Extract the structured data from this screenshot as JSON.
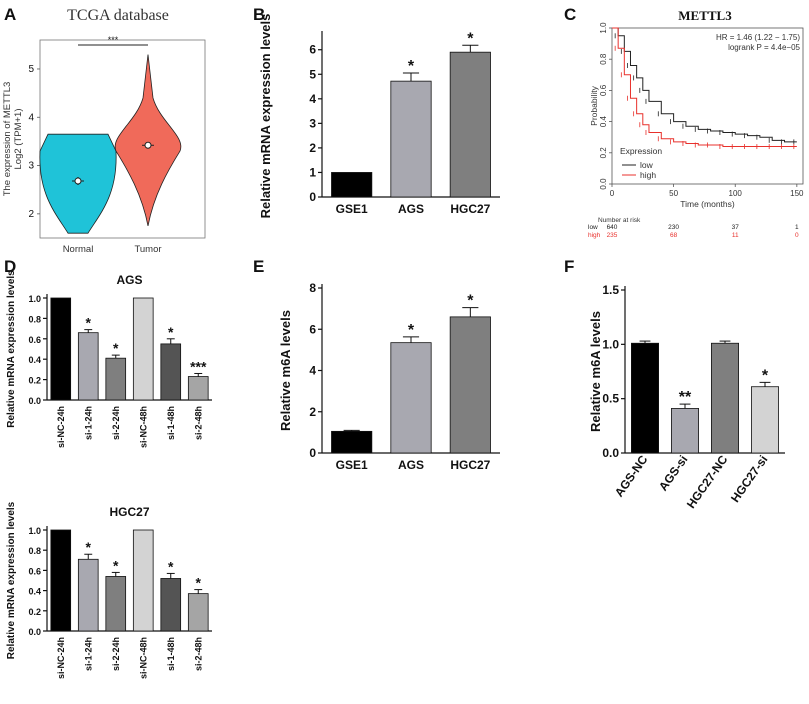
{
  "panels": {
    "A": "A",
    "B": "B",
    "C": "C",
    "D": "D",
    "E": "E",
    "F": "F"
  },
  "chart_data": [
    {
      "id": "A",
      "type": "violin",
      "title": "TCGA database",
      "ylabel_line1": "The expression of METTL3",
      "ylabel_line2": "Log2 (TPM+1)",
      "categories": [
        "Normal",
        "Tumor"
      ],
      "medians": [
        2.68,
        3.42
      ],
      "ranges": [
        [
          1.6,
          3.65
        ],
        [
          1.75,
          5.3
        ]
      ],
      "colors": [
        "#1fc3d8",
        "#f06a5a"
      ],
      "significance": "***",
      "yticks": [
        2,
        3,
        4,
        5
      ],
      "ylim": [
        1.5,
        5.6
      ]
    },
    {
      "id": "B",
      "type": "bar",
      "ylabel": "Relative mRNA expression levels",
      "categories": [
        "GSE1",
        "AGS",
        "HGC27"
      ],
      "values": [
        1.0,
        4.72,
        5.9
      ],
      "errors": [
        0,
        0.33,
        0.28
      ],
      "sig": [
        "",
        "*",
        "*"
      ],
      "colors": [
        "#000000",
        "#a8a8b0",
        "#7f7f7f"
      ],
      "yticks": [
        0,
        1,
        2,
        3,
        4,
        5,
        6
      ],
      "ylim": [
        0,
        6.6
      ]
    },
    {
      "id": "C",
      "type": "line",
      "title": "METTL3",
      "xlabel": "Time (months)",
      "ylabel": "Probability",
      "hr_text": "HR = 1.46 (1.22 − 1.75)",
      "logrank_text": "logrank P = 4.4e−05",
      "legend_title": "Expression",
      "series": [
        {
          "name": "low",
          "color": "#222222",
          "x": [
            0,
            5,
            10,
            15,
            20,
            25,
            30,
            40,
            50,
            60,
            70,
            80,
            90,
            100,
            110,
            120,
            130,
            140,
            150
          ],
          "y": [
            1.0,
            0.95,
            0.85,
            0.76,
            0.68,
            0.6,
            0.53,
            0.45,
            0.4,
            0.37,
            0.35,
            0.34,
            0.33,
            0.32,
            0.31,
            0.3,
            0.28,
            0.27,
            0.27
          ]
        },
        {
          "name": "high",
          "color": "#e8312c",
          "x": [
            0,
            5,
            10,
            15,
            20,
            25,
            30,
            40,
            50,
            60,
            70,
            80,
            90,
            100,
            110,
            120,
            130,
            140,
            150
          ],
          "y": [
            1.0,
            0.87,
            0.7,
            0.55,
            0.45,
            0.38,
            0.33,
            0.29,
            0.27,
            0.26,
            0.25,
            0.25,
            0.24,
            0.24,
            0.24,
            0.24,
            0.24,
            0.24,
            0.24
          ]
        }
      ],
      "xticks": [
        0,
        50,
        100,
        150
      ],
      "yticks": [
        0.0,
        0.2,
        0.4,
        0.6,
        0.8,
        1.0
      ],
      "xlim": [
        0,
        155
      ],
      "ylim": [
        0,
        1.0
      ],
      "risk_header": "Number at risk",
      "risk_rows": [
        {
          "label": "low",
          "values": [
            "640",
            "230",
            "37",
            "1"
          ],
          "color": "#222222"
        },
        {
          "label": "high",
          "values": [
            "235",
            "68",
            "11",
            "0"
          ],
          "color": "#e8312c"
        }
      ]
    },
    {
      "id": "D1",
      "type": "bar",
      "title": "AGS",
      "ylabel": "Relative mRNA expression levels",
      "categories": [
        "si-NC-24h",
        "si-1-24h",
        "si-2-24h",
        "si-NC-48h",
        "si-1-48h",
        "si-2-48h"
      ],
      "values": [
        1.0,
        0.66,
        0.41,
        1.0,
        0.55,
        0.23
      ],
      "errors": [
        0,
        0.03,
        0.03,
        0,
        0.05,
        0.03
      ],
      "sig": [
        "",
        "*",
        "*",
        "",
        "*",
        "***"
      ],
      "colors": [
        "#000000",
        "#a8a8b0",
        "#7f7f7f",
        "#d3d3d3",
        "#545454",
        "#a5a5a5"
      ],
      "yticks": [
        0.0,
        0.2,
        0.4,
        0.6,
        0.8,
        1.0
      ],
      "ylim": [
        0,
        1.0
      ]
    },
    {
      "id": "D2",
      "type": "bar",
      "title": "HGC27",
      "ylabel": "Relative mRNA expression levels",
      "categories": [
        "si-NC-24h",
        "si-1-24h",
        "si-2-24h",
        "si-NC-48h",
        "si-1-48h",
        "si-2-48h"
      ],
      "values": [
        1.0,
        0.71,
        0.54,
        1.0,
        0.52,
        0.37
      ],
      "errors": [
        0,
        0.05,
        0.04,
        0,
        0.05,
        0.04
      ],
      "sig": [
        "",
        "*",
        "*",
        "",
        "*",
        "*"
      ],
      "colors": [
        "#000000",
        "#a8a8b0",
        "#7f7f7f",
        "#d3d3d3",
        "#545454",
        "#a5a5a5"
      ],
      "yticks": [
        0.0,
        0.2,
        0.4,
        0.6,
        0.8,
        1.0
      ],
      "ylim": [
        0,
        1.0
      ]
    },
    {
      "id": "E",
      "type": "bar",
      "ylabel": "Relative m6A levels",
      "categories": [
        "GSE1",
        "AGS",
        "HGC27"
      ],
      "values": [
        1.05,
        5.35,
        6.6
      ],
      "errors": [
        0.05,
        0.28,
        0.45
      ],
      "sig": [
        "",
        "*",
        "*"
      ],
      "colors": [
        "#000000",
        "#a8a8b0",
        "#7f7f7f"
      ],
      "yticks": [
        0,
        2,
        4,
        6,
        8
      ],
      "ylim": [
        0,
        8
      ]
    },
    {
      "id": "F",
      "type": "bar",
      "ylabel": "Relative m6A levels",
      "categories": [
        "AGS-NC",
        "AGS-si",
        "HGC27-NC",
        "HGC27-si"
      ],
      "values": [
        1.01,
        0.41,
        1.01,
        0.61
      ],
      "errors": [
        0.02,
        0.04,
        0.02,
        0.04
      ],
      "sig": [
        "",
        "**",
        "",
        "*"
      ],
      "colors": [
        "#000000",
        "#a8a8b0",
        "#7f7f7f",
        "#d3d3d3"
      ],
      "yticks": [
        0.0,
        0.5,
        1.0,
        1.5
      ],
      "ylim": [
        0,
        1.5
      ]
    }
  ]
}
